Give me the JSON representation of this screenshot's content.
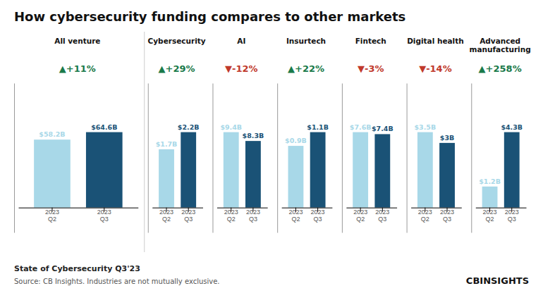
{
  "title": "How cybersecurity funding compares to other markets",
  "annotations": [
    "State of Cybersecurity Q3'23",
    "Source: CB Insights. Industries are not mutually exclusive.",
    "CBINSIGHTS"
  ],
  "chart_data": [
    {
      "type": "bar",
      "title": "All venture",
      "categories": [
        "2023\nQ2",
        "2023\nQ3"
      ],
      "values": [
        58.2,
        64.6
      ],
      "value_labels": [
        "$58.2B",
        "$64.6B"
      ],
      "colors": [
        "#a8d8e8",
        "#1a5276"
      ],
      "ylim": [
        -21.318,
        106.59
      ],
      "yticks": [],
      "tick_labels": "x",
      "data_labels": true,
      "annotations": [
        {
          "text": "▲+11%",
          "color": "#1a7a4a"
        }
      ]
    },
    {
      "type": "bar",
      "title": "Cybersecurity",
      "categories": [
        "2023\nQ2",
        "2023\nQ3"
      ],
      "values": [
        1.7,
        2.2
      ],
      "value_labels": [
        "$1.7B",
        "$2.2B"
      ],
      "colors": [
        "#a8d8e8",
        "#1a5276"
      ],
      "ylim": [
        -0.726,
        3.63
      ],
      "yticks": [],
      "tick_labels": "x",
      "data_labels": true,
      "annotations": [
        {
          "text": "▲+29%",
          "color": "#1a7a4a"
        }
      ]
    },
    {
      "type": "bar",
      "title": "AI",
      "categories": [
        "2023\nQ2",
        "2023\nQ3"
      ],
      "values": [
        9.4,
        8.3
      ],
      "value_labels": [
        "$9.4B",
        "$8.3B"
      ],
      "colors": [
        "#a8d8e8",
        "#1a5276"
      ],
      "ylim": [
        -3.102,
        15.51
      ],
      "yticks": [],
      "tick_labels": "x",
      "data_labels": true,
      "annotations": [
        {
          "text": "▼-12%",
          "color": "#c0392b"
        }
      ]
    },
    {
      "type": "bar",
      "title": "Insurtech",
      "categories": [
        "2023\nQ2",
        "2023\nQ3"
      ],
      "values": [
        0.9,
        1.1
      ],
      "value_labels": [
        "$0.9B",
        "$1.1B"
      ],
      "colors": [
        "#a8d8e8",
        "#1a5276"
      ],
      "ylim": [
        -0.363,
        1.815
      ],
      "yticks": [],
      "tick_labels": "x",
      "data_labels": true,
      "annotations": [
        {
          "text": "▲+22%",
          "color": "#1a7a4a"
        }
      ]
    },
    {
      "type": "bar",
      "title": "Fintech",
      "categories": [
        "2023\nQ2",
        "2023\nQ3"
      ],
      "values": [
        7.6,
        7.4
      ],
      "value_labels": [
        "$7.6B",
        "$7.4B"
      ],
      "colors": [
        "#a8d8e8",
        "#1a5276"
      ],
      "ylim": [
        -2.508,
        12.54
      ],
      "yticks": [],
      "tick_labels": "x",
      "data_labels": true,
      "annotations": [
        {
          "text": "▼-3%",
          "color": "#c0392b"
        }
      ]
    },
    {
      "type": "bar",
      "title": "Digital health",
      "categories": [
        "2023\nQ2",
        "2023\nQ3"
      ],
      "values": [
        3.5,
        3.0
      ],
      "value_labels": [
        "$3.5B",
        "$3B"
      ],
      "colors": [
        "#a8d8e8",
        "#1a5276"
      ],
      "ylim": [
        -1.155,
        5.775
      ],
      "yticks": [],
      "tick_labels": "x",
      "data_labels": true,
      "annotations": [
        {
          "text": "▼-14%",
          "color": "#c0392b"
        }
      ]
    },
    {
      "type": "bar",
      "title": "Advanced\nmanufacturing",
      "categories": [
        "2023\nQ2",
        "2023\nQ3"
      ],
      "values": [
        1.2,
        4.3
      ],
      "value_labels": [
        "$1.2B",
        "$4.3B"
      ],
      "colors": [
        "#a8d8e8",
        "#1a5276"
      ],
      "ylim": [
        -1.419,
        7.095
      ],
      "yticks": [],
      "tick_labels": "x",
      "data_labels": true,
      "annotations": [
        {
          "text": "▲+258%",
          "color": "#1a7a4a"
        }
      ]
    }
  ]
}
